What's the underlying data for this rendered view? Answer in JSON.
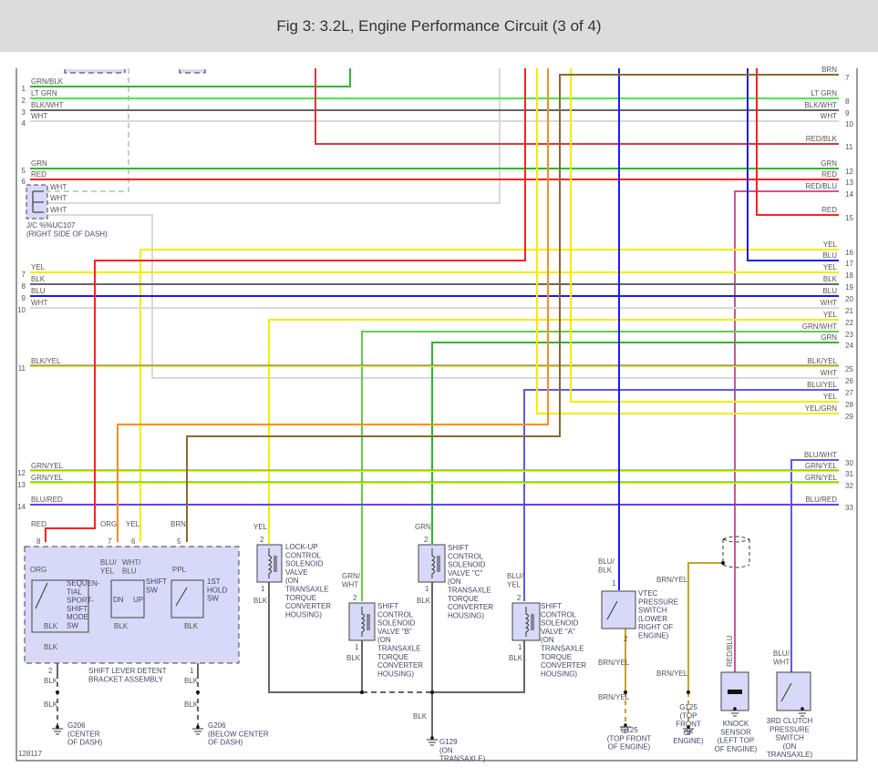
{
  "title": "Fig 3: 3.2L, Engine Performance Circuit (3 of 4)",
  "figure_id": "128117",
  "colors": {
    "grn": "#2db82d",
    "ltgrn": "#44ee44",
    "blk": "#666666",
    "wht": "#d9d9d9",
    "red": "#ff2020",
    "redblk": "#e03838",
    "yel": "#f2ee00",
    "blu": "#1a1aff",
    "brn": "#8b6a2e",
    "org": "#ff8c1a",
    "redblu": "#cc5599",
    "bluwht": "#5a5af0",
    "blured": "#6a3ff0",
    "brnyel": "#c8a030",
    "ppl": "#e020e0",
    "grnwht": "#66cc44",
    "whtblu": "#8888ff",
    "dash": "#bbbbbb",
    "component_fill": "#d8d8f8"
  },
  "left_wires": [
    {
      "pin": "1",
      "label": "GRN/BLK"
    },
    {
      "pin": "2",
      "label": "LT GRN"
    },
    {
      "pin": "3",
      "label": "BLK/WHT"
    },
    {
      "pin": "4",
      "label": "WHT"
    },
    {
      "pin": "5",
      "label": "GRN"
    },
    {
      "pin": "6",
      "label": "RED"
    },
    {
      "pin": "7",
      "label": "YEL"
    },
    {
      "pin": "8",
      "label": "BLK"
    },
    {
      "pin": "9",
      "label": "BLU"
    },
    {
      "pin": "10",
      "label": "WHT"
    },
    {
      "pin": "11",
      "label": "BLK/YEL"
    },
    {
      "pin": "12",
      "label": "GRN/YEL"
    },
    {
      "pin": "13",
      "label": "GRN/YEL"
    },
    {
      "pin": "14",
      "label": "BLU/RED"
    }
  ],
  "right_wires": [
    {
      "pin": "7",
      "label": "BRN"
    },
    {
      "pin": "8",
      "label": "LT GRN"
    },
    {
      "pin": "9",
      "label": "BLK/WHT"
    },
    {
      "pin": "10",
      "label": "WHT"
    },
    {
      "pin": "11",
      "label": "RED/BLK"
    },
    {
      "pin": "12",
      "label": "GRN"
    },
    {
      "pin": "13",
      "label": "RED"
    },
    {
      "pin": "14",
      "label": "RED/BLU"
    },
    {
      "pin": "15",
      "label": "RED"
    },
    {
      "pin": "16",
      "label": "YEL"
    },
    {
      "pin": "17",
      "label": "BLU"
    },
    {
      "pin": "18",
      "label": "YEL"
    },
    {
      "pin": "19",
      "label": "BLK"
    },
    {
      "pin": "20",
      "label": "BLU"
    },
    {
      "pin": "21",
      "label": "WHT"
    },
    {
      "pin": "22",
      "label": "YEL"
    },
    {
      "pin": "23",
      "label": "GRN/WHT"
    },
    {
      "pin": "24",
      "label": "GRN"
    },
    {
      "pin": "25",
      "label": "BLK/YEL"
    },
    {
      "pin": "26",
      "label": "WHT"
    },
    {
      "pin": "27",
      "label": "BLU/YEL"
    },
    {
      "pin": "28",
      "label": "YEL"
    },
    {
      "pin": "29",
      "label": "YEL/GRN"
    },
    {
      "pin": "30",
      "label": "BLU/WHT"
    },
    {
      "pin": "31",
      "label": "GRN/YEL"
    },
    {
      "pin": "32",
      "label": "GRN/YEL"
    },
    {
      "pin": "33",
      "label": "BLU/RED"
    }
  ],
  "junction": {
    "wires": [
      "WHT",
      "WHT",
      "WHT"
    ],
    "name": [
      "J/C %%UC107",
      "(RIGHT SIDE OF DASH)"
    ]
  },
  "shift_lever": {
    "in_labels": {
      "red": "RED",
      "org": "ORG",
      "yel": "YEL",
      "brn": "BRN"
    },
    "pins": {
      "red": "8",
      "org": "7",
      "yel": "6",
      "brn": "5",
      "gnd_left": "2",
      "gnd_right": "1"
    },
    "inner": {
      "org": "ORG",
      "blu_yel": [
        "BLU/",
        "YEL"
      ],
      "wht_blu": [
        "WHT/",
        "BLU"
      ],
      "ppl": "PPL",
      "blk_a": "BLK",
      "blk_b": "BLK",
      "blk_c": "BLK",
      "blk_d": "BLK"
    },
    "sport_switch": [
      "SEQUEN-",
      "TIAL",
      "SPORT-",
      "SHIFT",
      "MODE",
      "SW"
    ],
    "shift_switch": [
      "SHIFT",
      "SW"
    ],
    "dn": "DN",
    "up": "UP",
    "hold_switch": [
      "1ST",
      "HOLD",
      "SW"
    ],
    "name": [
      "SHIFT LEVER DETENT",
      "BRACKET ASSEMBLY"
    ],
    "out": {
      "blk_l1": "BLK",
      "blk_l2": "BLK",
      "blk_r1": "BLK",
      "blk_r2": "BLK"
    },
    "ground_left": [
      "G206",
      "(CENTER",
      "OF DASH)"
    ],
    "ground_right": [
      "G206",
      "(BELOW CENTER",
      "OF DASH)"
    ]
  },
  "lockup_valve": {
    "wire": "YEL",
    "pin_top": "2",
    "pin_bottom": "1",
    "ground_wire": "BLK",
    "name": [
      "LOCK-UP",
      "CONTROL",
      "SOLENOID",
      "VALVE",
      "(ON",
      "TRANSAXLE",
      "TORQUE",
      "CONVERTER",
      "HOUSING)"
    ]
  },
  "valve_b": {
    "wire": [
      "GRN/",
      "WHT"
    ],
    "pin_top": "2",
    "pin_bottom": "1",
    "ground_wire": "BLK",
    "name": [
      "SHIFT",
      "CONTROL",
      "SOLENOID",
      "VALVE \"B\"",
      "(ON",
      "TRANSAXLE",
      "TORQUE",
      "CONVERTER",
      "HOUSING)"
    ]
  },
  "valve_c": {
    "wire": "GRN",
    "pin_top": "2",
    "pin_bottom": "1",
    "ground_wire": "BLK",
    "name": [
      "SHIFT",
      "CONTROL",
      "SOLENOID",
      "VALVE \"C\"",
      "(ON",
      "TRANSAXLE",
      "TORQUE",
      "CONVERTER",
      "HOUSING)"
    ]
  },
  "valve_a": {
    "wire": [
      "BLU/",
      "YEL"
    ],
    "pin_top": "2",
    "pin_bottom": "1",
    "ground_wire": "BLK",
    "name": [
      "SHIFT",
      "CONTROL",
      "SOLENOID",
      "VALVE \"A\"",
      "(ON",
      "TRANSAXLE",
      "TORQUE",
      "CONVERTER",
      "HOUSING)"
    ]
  },
  "solenoid_ground": {
    "wire": "BLK",
    "name": [
      "G129",
      "(ON",
      "TRANSAXLE)"
    ]
  },
  "vtec": {
    "wire": [
      "BLU/",
      "BLK"
    ],
    "pin_top": "1",
    "pin_bottom": "2",
    "name": [
      "VTEC",
      "PRESSURE",
      "SWITCH",
      "(LOWER",
      "RIGHT OF",
      "ENGINE)"
    ],
    "out1": "BRN/YEL",
    "out2": "BRN/YEL",
    "ground": [
      "G125",
      "(TOP FRONT",
      "OF ENGINE)"
    ]
  },
  "shield_ground": {
    "wire1": "BRN/YEL",
    "wire2": "BRN/YEL",
    "ground": [
      "G125",
      "(TOP",
      "FRONT",
      "OF",
      "ENGINE)"
    ]
  },
  "knock_sensor": {
    "wire": "RED/BLU",
    "name": [
      "KNOCK",
      "SENSOR",
      "(LEFT TOP",
      "OF ENGINE)"
    ]
  },
  "clutch_switch": {
    "wire": [
      "BLU/",
      "WHT"
    ],
    "name": [
      "3RD CLUTCH",
      "PRESSURE",
      "SWITCH",
      "(ON",
      "TRANSAXLE)"
    ]
  }
}
